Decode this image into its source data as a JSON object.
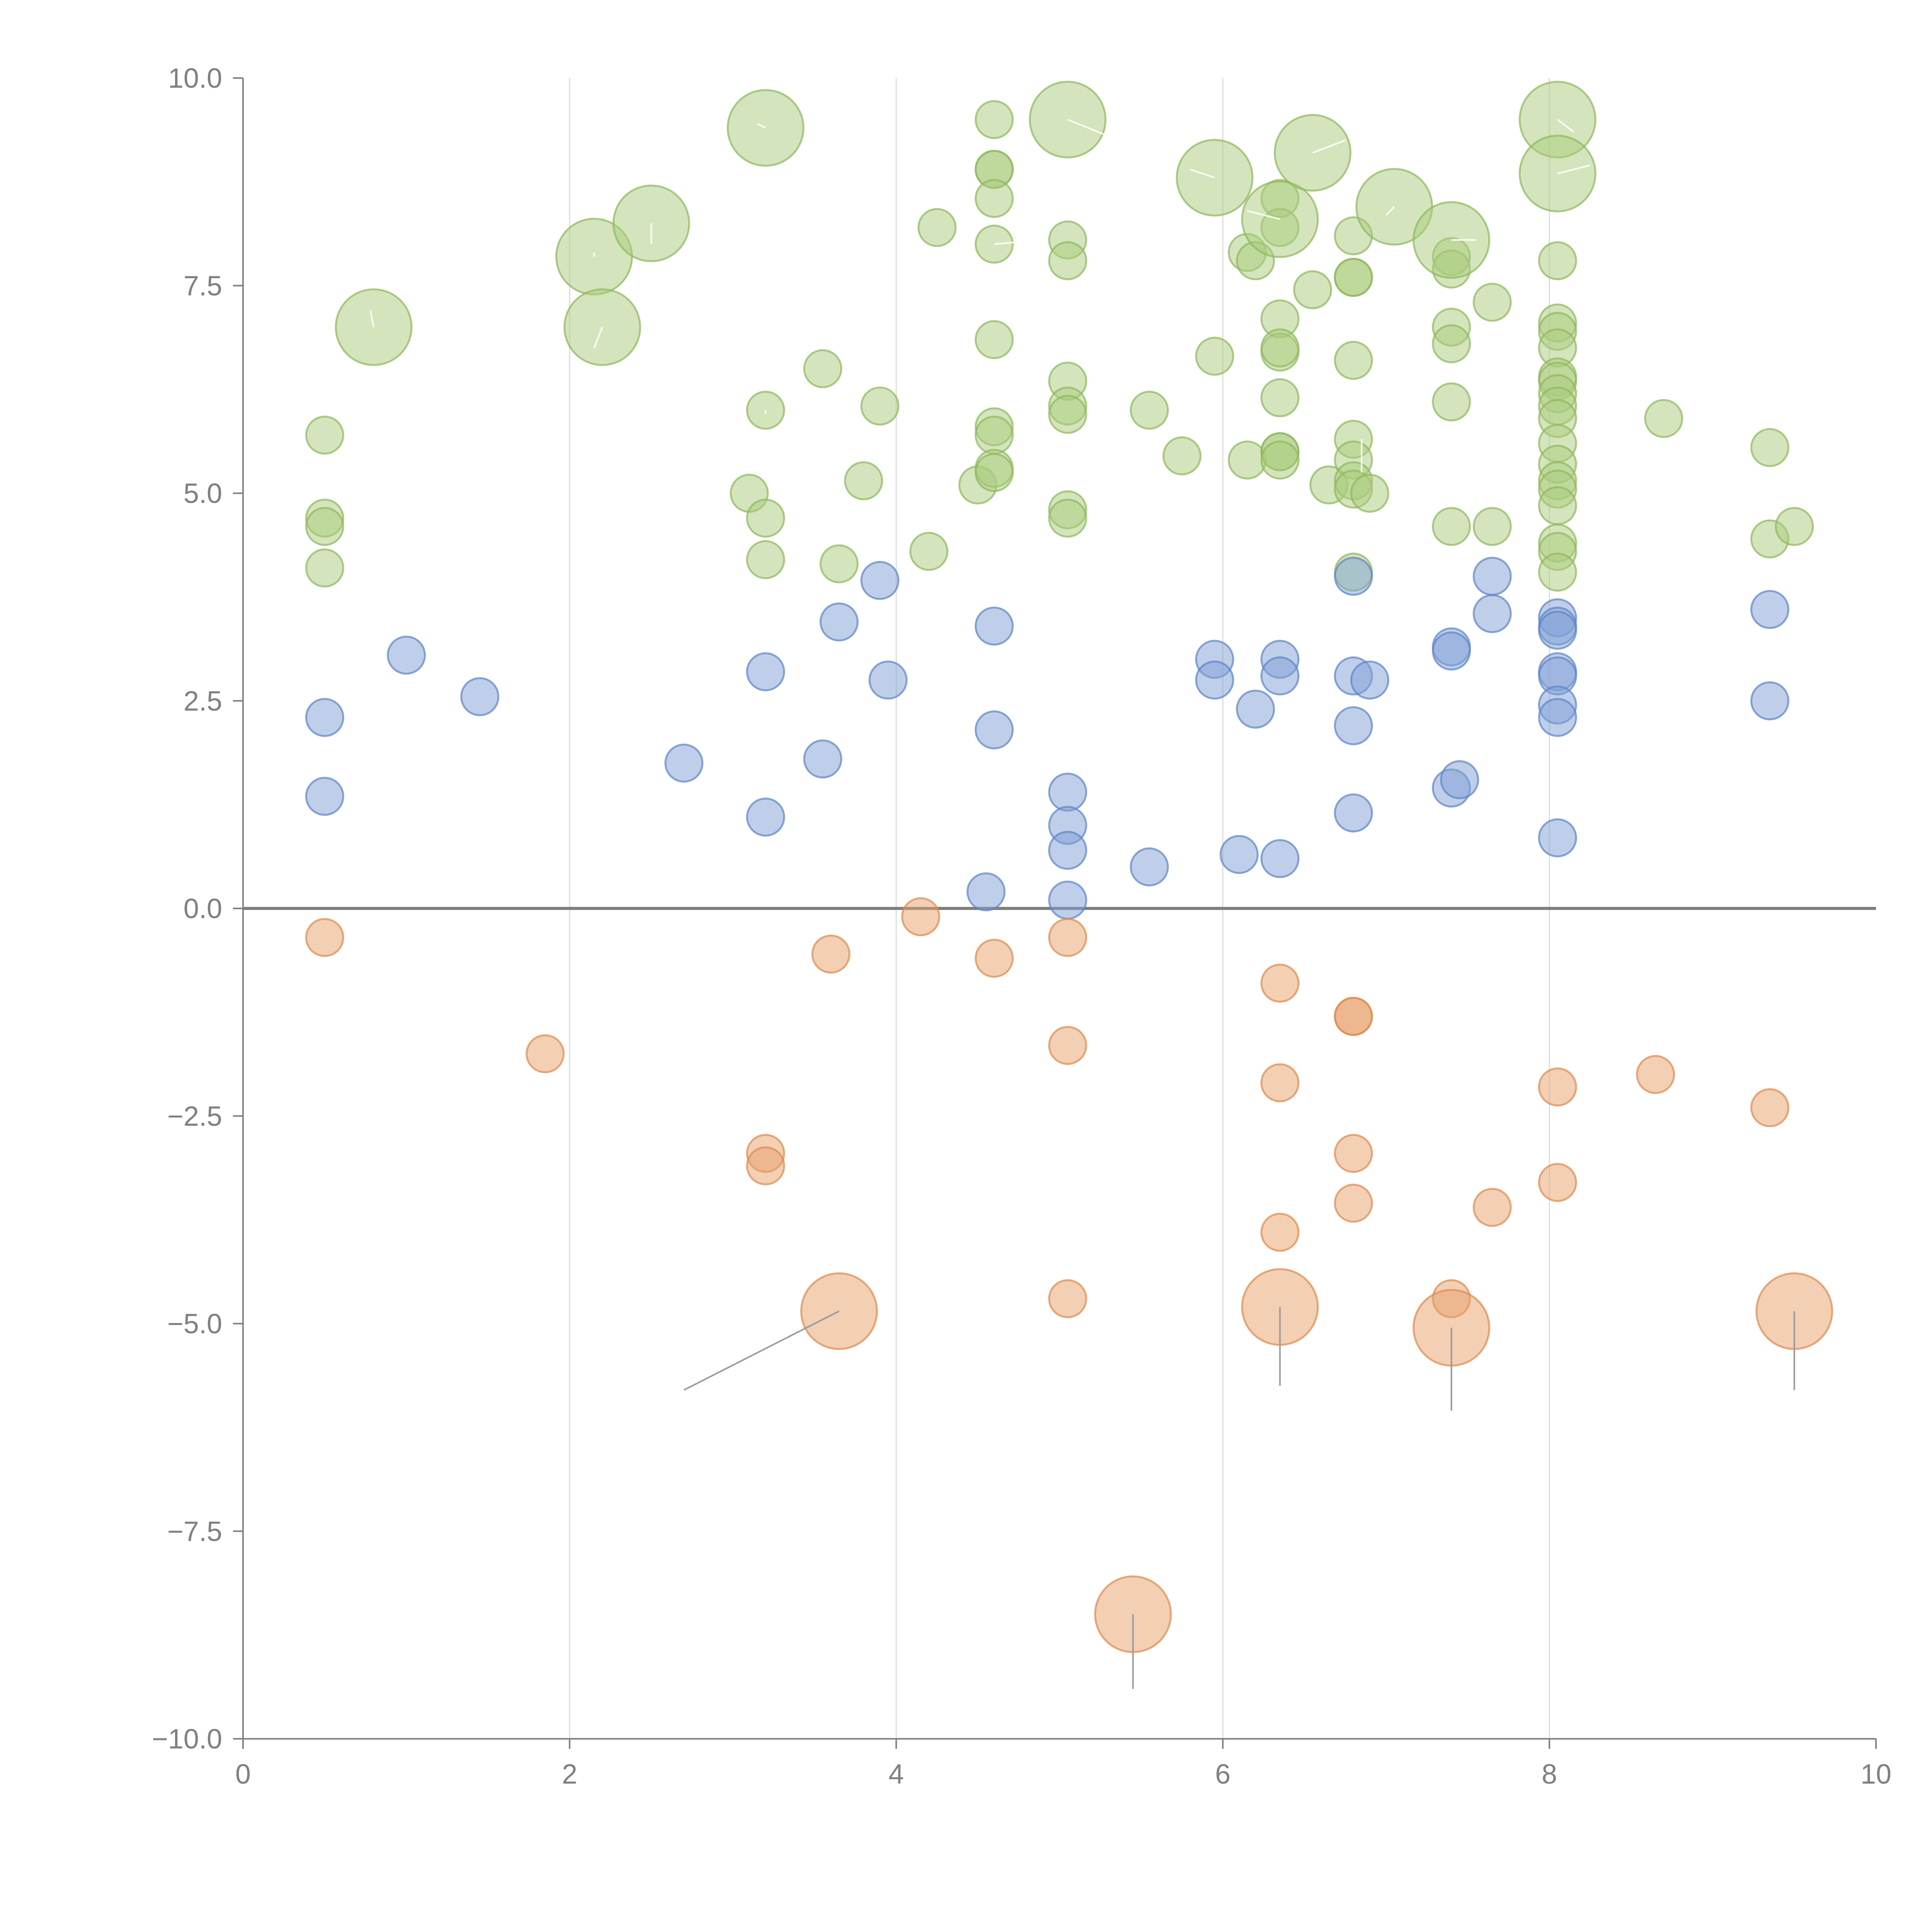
{
  "chart_data": {
    "type": "scatter",
    "title": "",
    "xlabel": "",
    "ylabel": "",
    "xlim": [
      0,
      10
    ],
    "ylim": [
      -10,
      10
    ],
    "x_ticks": [
      0,
      2,
      4,
      6,
      8,
      10
    ],
    "x_tick_labels": [
      "0",
      "2",
      "4",
      "6",
      "8",
      "10"
    ],
    "y_ticks": [
      10,
      7.5,
      5,
      2.5,
      0,
      -2.5,
      -5,
      -7.5,
      -10
    ],
    "y_tick_labels": [
      "10.0",
      "7.5",
      "5.0",
      "2.5",
      "0.0",
      "−2.5",
      "−5.0",
      "−7.5",
      "−10.0"
    ],
    "vertical_grid_x": [
      2,
      4,
      6,
      8
    ],
    "zero_line_y": 0,
    "colors": {
      "green_fill": "#a9cb7c",
      "green_stroke": "#8fb65c",
      "blue_fill": "#7f9fd6",
      "blue_stroke": "#5c83c4",
      "orange_fill": "#e8a06a",
      "orange_stroke": "#dc8a4c",
      "leader_light": "#ffffff",
      "leader_dark": "#9a9a9a",
      "axis": "#808080"
    },
    "series": [
      {
        "name": "green",
        "size": "small",
        "points": [
          [
            0.5,
            5.7
          ],
          [
            0.5,
            4.7
          ],
          [
            0.5,
            4.6
          ],
          [
            0.5,
            4.1
          ],
          [
            3.2,
            6.0
          ],
          [
            3.1,
            5.0
          ],
          [
            3.2,
            4.7
          ],
          [
            3.2,
            4.2
          ],
          [
            3.55,
            6.5
          ],
          [
            3.65,
            4.15
          ],
          [
            3.8,
            5.15
          ],
          [
            3.9,
            6.05
          ],
          [
            4.2,
            4.3
          ],
          [
            4.25,
            8.2
          ],
          [
            4.5,
            5.1
          ],
          [
            4.6,
            9.5
          ],
          [
            4.6,
            8.9
          ],
          [
            4.6,
            8.9
          ],
          [
            4.6,
            8.55
          ],
          [
            4.6,
            8.0
          ],
          [
            4.6,
            6.85
          ],
          [
            4.6,
            5.8
          ],
          [
            4.6,
            5.7
          ],
          [
            4.6,
            5.3
          ],
          [
            4.6,
            5.25
          ],
          [
            5.05,
            8.05
          ],
          [
            5.05,
            7.8
          ],
          [
            5.05,
            6.35
          ],
          [
            5.05,
            6.05
          ],
          [
            5.05,
            5.95
          ],
          [
            5.05,
            4.8
          ],
          [
            5.05,
            4.7
          ],
          [
            5.55,
            6.0
          ],
          [
            5.75,
            5.45
          ],
          [
            5.95,
            6.65
          ],
          [
            6.15,
            5.4
          ],
          [
            6.15,
            7.9
          ],
          [
            6.2,
            7.8
          ],
          [
            6.35,
            8.55
          ],
          [
            6.35,
            8.2
          ],
          [
            6.35,
            7.1
          ],
          [
            6.35,
            6.7
          ],
          [
            6.35,
            6.75
          ],
          [
            6.35,
            6.15
          ],
          [
            6.35,
            5.5
          ],
          [
            6.35,
            5.5
          ],
          [
            6.35,
            5.4
          ],
          [
            6.55,
            7.45
          ],
          [
            6.65,
            5.1
          ],
          [
            6.8,
            8.1
          ],
          [
            6.8,
            7.6
          ],
          [
            6.8,
            7.6
          ],
          [
            6.8,
            6.6
          ],
          [
            6.8,
            5.65
          ],
          [
            6.8,
            5.4
          ],
          [
            6.8,
            5.15
          ],
          [
            6.8,
            5.05
          ],
          [
            6.8,
            4.05
          ],
          [
            6.9,
            5.0
          ],
          [
            7.4,
            7.85
          ],
          [
            7.4,
            7.7
          ],
          [
            7.4,
            7.0
          ],
          [
            7.4,
            6.8
          ],
          [
            7.4,
            6.1
          ],
          [
            7.4,
            4.6
          ],
          [
            7.65,
            7.3
          ],
          [
            7.65,
            4.6
          ],
          [
            8.05,
            7.8
          ],
          [
            8.05,
            7.05
          ],
          [
            8.05,
            6.95
          ],
          [
            8.05,
            6.75
          ],
          [
            8.05,
            6.4
          ],
          [
            8.05,
            6.35
          ],
          [
            8.05,
            6.2
          ],
          [
            8.05,
            6.05
          ],
          [
            8.05,
            5.9
          ],
          [
            8.05,
            5.6
          ],
          [
            8.05,
            5.35
          ],
          [
            8.05,
            5.15
          ],
          [
            8.05,
            5.05
          ],
          [
            8.05,
            4.85
          ],
          [
            8.05,
            4.4
          ],
          [
            8.05,
            4.3
          ],
          [
            8.05,
            4.05
          ],
          [
            8.7,
            5.9
          ],
          [
            9.35,
            5.55
          ],
          [
            9.35,
            4.45
          ],
          [
            9.5,
            4.6
          ]
        ]
      },
      {
        "name": "green",
        "size": "large",
        "points": [
          [
            0.8,
            7.0
          ],
          [
            2.15,
            7.85
          ],
          [
            2.2,
            7.0
          ],
          [
            2.5,
            8.25
          ],
          [
            3.2,
            9.4
          ],
          [
            5.05,
            9.5
          ],
          [
            5.95,
            8.8
          ],
          [
            6.35,
            8.3
          ],
          [
            6.55,
            9.1
          ],
          [
            7.05,
            8.45
          ],
          [
            7.4,
            8.05
          ],
          [
            8.05,
            9.5
          ],
          [
            8.05,
            8.85
          ]
        ]
      },
      {
        "name": "blue",
        "size": "small",
        "points": [
          [
            0.5,
            2.3
          ],
          [
            0.5,
            1.35
          ],
          [
            1.0,
            3.05
          ],
          [
            1.45,
            2.55
          ],
          [
            2.7,
            1.75
          ],
          [
            3.2,
            2.85
          ],
          [
            3.2,
            1.1
          ],
          [
            3.55,
            1.8
          ],
          [
            3.65,
            3.45
          ],
          [
            3.9,
            3.95
          ],
          [
            3.95,
            2.75
          ],
          [
            4.55,
            0.2
          ],
          [
            4.6,
            3.4
          ],
          [
            4.6,
            2.15
          ],
          [
            5.05,
            1.4
          ],
          [
            5.05,
            1.0
          ],
          [
            5.05,
            0.7
          ],
          [
            5.05,
            0.1
          ],
          [
            5.55,
            0.5
          ],
          [
            5.95,
            3.0
          ],
          [
            5.95,
            2.75
          ],
          [
            6.1,
            0.65
          ],
          [
            6.2,
            2.4
          ],
          [
            6.35,
            3.0
          ],
          [
            6.35,
            2.8
          ],
          [
            6.35,
            0.6
          ],
          [
            6.8,
            4.0
          ],
          [
            6.8,
            2.8
          ],
          [
            6.8,
            2.2
          ],
          [
            6.8,
            1.15
          ],
          [
            6.9,
            2.75
          ],
          [
            7.4,
            3.15
          ],
          [
            7.4,
            3.1
          ],
          [
            7.4,
            1.45
          ],
          [
            7.45,
            1.55
          ],
          [
            7.65,
            4.0
          ],
          [
            7.65,
            3.55
          ],
          [
            8.05,
            3.5
          ],
          [
            8.05,
            3.4
          ],
          [
            8.05,
            3.35
          ],
          [
            8.05,
            2.85
          ],
          [
            8.05,
            2.8
          ],
          [
            8.05,
            2.45
          ],
          [
            8.05,
            2.3
          ],
          [
            8.05,
            0.85
          ],
          [
            9.35,
            3.6
          ],
          [
            9.35,
            2.5
          ]
        ]
      },
      {
        "name": "orange",
        "size": "small",
        "points": [
          [
            0.5,
            -0.35
          ],
          [
            1.85,
            -1.75
          ],
          [
            3.2,
            -2.95
          ],
          [
            3.2,
            -3.1
          ],
          [
            3.6,
            -0.55
          ],
          [
            4.15,
            -0.1
          ],
          [
            4.6,
            -0.6
          ],
          [
            5.05,
            -0.35
          ],
          [
            5.05,
            -1.65
          ],
          [
            5.05,
            -4.7
          ],
          [
            6.35,
            -0.9
          ],
          [
            6.35,
            -2.1
          ],
          [
            6.35,
            -3.9
          ],
          [
            6.8,
            -1.3
          ],
          [
            6.8,
            -1.3
          ],
          [
            6.8,
            -2.95
          ],
          [
            6.8,
            -3.55
          ],
          [
            7.4,
            -4.7
          ],
          [
            7.65,
            -3.6
          ],
          [
            8.05,
            -2.15
          ],
          [
            8.05,
            -3.3
          ],
          [
            8.65,
            -2.0
          ],
          [
            9.35,
            -2.4
          ]
        ]
      },
      {
        "name": "orange",
        "size": "large",
        "points": [
          [
            3.65,
            -4.85
          ],
          [
            5.45,
            -8.5
          ],
          [
            6.35,
            -4.8
          ],
          [
            7.4,
            -5.05
          ],
          [
            9.5,
            -4.85
          ]
        ]
      }
    ],
    "leader_lines_light": [
      [
        [
          0.8,
          7.0
        ],
        [
          0.78,
          7.2
        ]
      ],
      [
        [
          2.15,
          7.85
        ],
        [
          2.15,
          7.9
        ]
      ],
      [
        [
          2.2,
          7.0
        ],
        [
          2.15,
          6.75
        ]
      ],
      [
        [
          2.5,
          8.25
        ],
        [
          2.5,
          8.0
        ]
      ],
      [
        [
          3.2,
          9.4
        ],
        [
          3.15,
          9.45
        ]
      ],
      [
        [
          3.2,
          6.0
        ],
        [
          3.2,
          5.95
        ]
      ],
      [
        [
          5.05,
          9.5
        ],
        [
          5.3,
          9.3
        ]
      ],
      [
        [
          5.95,
          8.8
        ],
        [
          5.8,
          8.9
        ]
      ],
      [
        [
          6.35,
          8.3
        ],
        [
          6.15,
          8.4
        ]
      ],
      [
        [
          6.55,
          9.1
        ],
        [
          6.75,
          9.25
        ]
      ],
      [
        [
          7.05,
          8.45
        ],
        [
          7.0,
          8.35
        ]
      ],
      [
        [
          7.4,
          8.05
        ],
        [
          7.55,
          8.05
        ]
      ],
      [
        [
          8.05,
          9.5
        ],
        [
          8.15,
          9.35
        ]
      ],
      [
        [
          8.05,
          8.85
        ],
        [
          8.25,
          8.95
        ]
      ],
      [
        [
          4.6,
          8.0
        ],
        [
          4.9,
          8.05
        ]
      ],
      [
        [
          6.85,
          5.65
        ],
        [
          6.85,
          5.25
        ]
      ]
    ],
    "leader_lines_dark": [
      [
        [
          3.65,
          -4.85
        ],
        [
          2.7,
          -5.8
        ]
      ],
      [
        [
          5.45,
          -8.5
        ],
        [
          5.45,
          -9.4
        ]
      ],
      [
        [
          6.35,
          -4.8
        ],
        [
          6.35,
          -5.75
        ]
      ],
      [
        [
          7.4,
          -5.05
        ],
        [
          7.4,
          -6.05
        ]
      ],
      [
        [
          9.5,
          -4.85
        ],
        [
          9.5,
          -5.8
        ]
      ]
    ]
  }
}
